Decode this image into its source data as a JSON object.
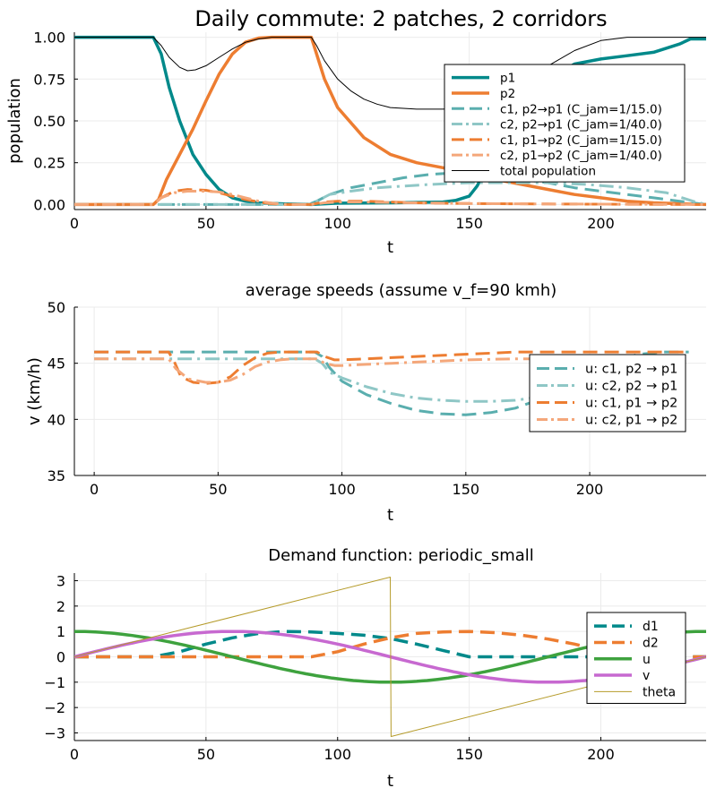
{
  "chart_data": [
    {
      "type": "line",
      "title": "Daily commute: 2 patches, 2 corridors",
      "xlabel": "t",
      "ylabel": "population",
      "xlim": [
        0,
        240
      ],
      "ylim": [
        -0.03,
        1.03
      ],
      "xticks": [
        0,
        50,
        100,
        150,
        200
      ],
      "xtick_labels": [
        "0",
        "50",
        "100",
        "150",
        "200"
      ],
      "yticks": [
        0,
        0.25,
        0.5,
        0.75,
        1.0
      ],
      "ytick_labels": [
        "0.00",
        "0.25",
        "0.50",
        "0.75",
        "1.00"
      ],
      "grid": true,
      "legend_position": "top-right",
      "series": [
        {
          "name": "p1",
          "color": "#00898a",
          "style": "solid",
          "width": 3.5,
          "x": [
            0,
            30,
            33,
            36,
            40,
            45,
            50,
            55,
            60,
            65,
            70,
            80,
            90,
            100,
            120,
            140,
            145,
            150,
            153,
            156,
            160,
            170,
            180,
            190,
            200,
            210,
            220,
            230,
            234,
            240
          ],
          "y": [
            1,
            1,
            0.9,
            0.7,
            0.5,
            0.3,
            0.18,
            0.09,
            0.04,
            0.02,
            0.01,
            0.003,
            0,
            0.008,
            0.01,
            0.015,
            0.025,
            0.05,
            0.11,
            0.2,
            0.4,
            0.6,
            0.75,
            0.84,
            0.87,
            0.89,
            0.91,
            0.96,
            0.99,
            0.99
          ]
        },
        {
          "name": "p2",
          "color": "#ed7d31",
          "style": "solid",
          "width": 3.5,
          "x": [
            0,
            30,
            32,
            35,
            40,
            45,
            50,
            55,
            60,
            65,
            70,
            75,
            80,
            90,
            92,
            95,
            100,
            110,
            120,
            130,
            140,
            150,
            160,
            170,
            180,
            190,
            200,
            210,
            220,
            230,
            240
          ],
          "y": [
            0,
            0,
            0.03,
            0.15,
            0.3,
            0.45,
            0.62,
            0.78,
            0.9,
            0.97,
            0.995,
            1,
            1,
            1,
            0.9,
            0.75,
            0.58,
            0.4,
            0.3,
            0.25,
            0.22,
            0.18,
            0.15,
            0.12,
            0.09,
            0.06,
            0.04,
            0.02,
            0.01,
            0.005,
            0
          ]
        },
        {
          "name": "c1, p2→p1 (C_jam=1/15.0)",
          "color": "#5aaeae",
          "style": "dash",
          "width": 3,
          "x": [
            0,
            89,
            92,
            97,
            105,
            115,
            125,
            135,
            145,
            150,
            155,
            160,
            170,
            180,
            190,
            200,
            210,
            220,
            230,
            240
          ],
          "y": [
            0,
            0,
            0.02,
            0.06,
            0.1,
            0.13,
            0.16,
            0.18,
            0.19,
            0.19,
            0.18,
            0.17,
            0.15,
            0.13,
            0.1,
            0.08,
            0.06,
            0.04,
            0.02,
            0
          ]
        },
        {
          "name": "c2, p2→p1 (C_jam=1/40.0)",
          "color": "#8fc7c6",
          "style": "dashdot",
          "width": 3,
          "x": [
            0,
            89,
            92,
            97,
            105,
            115,
            125,
            135,
            150,
            165,
            180,
            195,
            210,
            225,
            235,
            240
          ],
          "y": [
            0,
            0,
            0.02,
            0.06,
            0.08,
            0.1,
            0.11,
            0.12,
            0.13,
            0.13,
            0.13,
            0.12,
            0.1,
            0.07,
            0.02,
            0
          ]
        },
        {
          "name": "c1, p1→p2 (C_jam=1/15.0)",
          "color": "#ed7d31",
          "style": "dash",
          "width": 3,
          "x": [
            0,
            30,
            33,
            38,
            43,
            50,
            55,
            60,
            65,
            70,
            75,
            80,
            90,
            95,
            100,
            110,
            120,
            130,
            140,
            150,
            160,
            170,
            180,
            200,
            220,
            240
          ],
          "y": [
            0,
            0,
            0.04,
            0.08,
            0.09,
            0.085,
            0.07,
            0.05,
            0.03,
            0.015,
            0.005,
            0,
            0,
            0.015,
            0.02,
            0.02,
            0.015,
            0.01,
            0.008,
            0.006,
            0.005,
            0.004,
            0.003,
            0.002,
            0.001,
            0
          ]
        },
        {
          "name": "c2, p1→p2 (C_jam=1/40.0)",
          "color": "#f4a77a",
          "style": "dashdot",
          "width": 3,
          "x": [
            0,
            30,
            33,
            38,
            43,
            50,
            55,
            60,
            65,
            70,
            75,
            80,
            90,
            95,
            100,
            110,
            120,
            130,
            140,
            150,
            160,
            170,
            180,
            200,
            220,
            240
          ],
          "y": [
            0,
            0,
            0.04,
            0.07,
            0.08,
            0.08,
            0.075,
            0.06,
            0.04,
            0.02,
            0.008,
            0,
            0,
            0.01,
            0.015,
            0.015,
            0.012,
            0.01,
            0.008,
            0.006,
            0.005,
            0.004,
            0.003,
            0.002,
            0.001,
            0
          ]
        },
        {
          "name": "total population",
          "color": "#000000",
          "style": "solid",
          "width": 1,
          "x": [
            0,
            30,
            33,
            36,
            40,
            43,
            46,
            50,
            55,
            60,
            65,
            70,
            75,
            80,
            90,
            92,
            95,
            100,
            105,
            110,
            115,
            120,
            130,
            140,
            150,
            160,
            170,
            180,
            190,
            200,
            210,
            220,
            230,
            240
          ],
          "y": [
            1,
            1,
            0.95,
            0.88,
            0.82,
            0.8,
            0.805,
            0.83,
            0.88,
            0.93,
            0.97,
            0.99,
            1,
            1,
            1,
            0.95,
            0.86,
            0.75,
            0.68,
            0.63,
            0.6,
            0.58,
            0.57,
            0.57,
            0.58,
            0.65,
            0.74,
            0.83,
            0.92,
            0.98,
            1,
            1,
            1,
            1
          ]
        }
      ]
    },
    {
      "type": "line",
      "title": "average speeds (assume v_f=90 kmh)",
      "xlabel": "t",
      "ylabel": "v (km/h)",
      "xlim": [
        -8,
        247
      ],
      "ylim": [
        35,
        50
      ],
      "xticks": [
        0,
        50,
        100,
        150,
        200
      ],
      "xtick_labels": [
        "0",
        "50",
        "100",
        "150",
        "200"
      ],
      "yticks": [
        35,
        40,
        45,
        50
      ],
      "ytick_labels": [
        "35",
        "40",
        "45",
        "50"
      ],
      "grid": true,
      "legend_position": "right",
      "series": [
        {
          "name": "u: c1, p2 → p1",
          "color": "#5aaeae",
          "style": "dash",
          "width": 3,
          "x": [
            0,
            89,
            92,
            95,
            100,
            110,
            120,
            130,
            140,
            150,
            160,
            170,
            180,
            190,
            200,
            210,
            220,
            230,
            240
          ],
          "y": [
            46,
            46,
            45.6,
            44.6,
            43.4,
            42.2,
            41.4,
            40.8,
            40.5,
            40.4,
            40.6,
            41,
            41.8,
            43,
            44.4,
            45.3,
            45.8,
            46,
            46
          ]
        },
        {
          "name": "u: c2, p2 → p1",
          "color": "#8fc7c6",
          "style": "dashdot",
          "width": 3,
          "x": [
            0,
            89,
            92,
            95,
            100,
            110,
            120,
            130,
            140,
            150,
            160,
            170,
            180,
            190,
            200,
            210,
            220,
            230,
            240
          ],
          "y": [
            45.4,
            45.4,
            45,
            44.2,
            43.7,
            42.9,
            42.3,
            41.9,
            41.7,
            41.6,
            41.6,
            41.7,
            42,
            42.8,
            43.8,
            44.6,
            45,
            45.3,
            45.4
          ]
        },
        {
          "name": "u: c1, p1 → p2",
          "color": "#ed7d31",
          "style": "dash",
          "width": 3,
          "x": [
            0,
            30,
            32,
            35,
            40,
            45,
            50,
            55,
            60,
            65,
            70,
            75,
            80,
            90,
            93,
            97,
            100,
            110,
            120,
            130,
            140,
            150,
            160,
            170,
            180,
            200,
            220,
            240
          ],
          "y": [
            46,
            46,
            45.3,
            43.8,
            43.3,
            43.2,
            43.3,
            43.8,
            44.8,
            45.5,
            45.9,
            46,
            46,
            46,
            45.6,
            45.3,
            45.3,
            45.4,
            45.5,
            45.6,
            45.7,
            45.8,
            45.9,
            46,
            46,
            46,
            46,
            46
          ]
        },
        {
          "name": "u: c2, p1 → p2",
          "color": "#f4a77a",
          "style": "dashdot",
          "width": 3,
          "x": [
            0,
            30,
            33,
            38,
            45,
            50,
            55,
            60,
            65,
            70,
            75,
            80,
            90,
            93,
            97,
            100,
            110,
            120,
            130,
            140,
            150,
            160,
            170,
            180,
            200,
            220,
            240
          ],
          "y": [
            45.4,
            45.4,
            44.5,
            43.6,
            43.3,
            43.3,
            43.5,
            44,
            44.7,
            45.1,
            45.3,
            45.4,
            45.4,
            45,
            44.8,
            44.8,
            44.9,
            45,
            45.1,
            45.2,
            45.3,
            45.35,
            45.4,
            45.4,
            45.4,
            45.4,
            45.4
          ]
        }
      ]
    },
    {
      "type": "line",
      "title": "Demand function: periodic_small",
      "xlabel": "t",
      "ylabel": "",
      "xlim": [
        0,
        240
      ],
      "ylim": [
        -3.3,
        3.3
      ],
      "xticks": [
        0,
        50,
        100,
        150,
        200
      ],
      "xtick_labels": [
        "0",
        "50",
        "100",
        "150",
        "200"
      ],
      "yticks": [
        -3,
        -2,
        -1,
        0,
        1,
        2,
        3
      ],
      "ytick_labels": [
        "−3",
        "−2",
        "−1",
        "0",
        "1",
        "2",
        "3"
      ],
      "grid": true,
      "legend_position": "right",
      "series": [
        {
          "name": "d1",
          "color": "#00898a",
          "style": "dash",
          "width": 3.5,
          "x": [
            0,
            30,
            40,
            50,
            60,
            70,
            80,
            90,
            100,
            110,
            120,
            130,
            140,
            150,
            160,
            170,
            180,
            190,
            200,
            210,
            220,
            230,
            240
          ],
          "y": [
            0,
            0,
            0.2,
            0.5,
            0.75,
            0.92,
            1,
            0.98,
            0.92,
            0.85,
            0.72,
            0.5,
            0.25,
            0,
            0,
            0,
            0,
            0,
            0,
            0,
            0,
            0,
            0
          ]
        },
        {
          "name": "d2",
          "color": "#ed7d31",
          "style": "dash",
          "width": 3.5,
          "x": [
            0,
            30,
            60,
            90,
            100,
            110,
            120,
            130,
            140,
            150,
            160,
            170,
            180,
            190,
            200,
            210,
            220,
            230,
            240
          ],
          "y": [
            0,
            0,
            0,
            0,
            0.2,
            0.5,
            0.75,
            0.92,
            0.98,
            1,
            0.95,
            0.85,
            0.7,
            0.5,
            0.25,
            0,
            0,
            0,
            0
          ]
        },
        {
          "name": "u",
          "color": "#3ea23e",
          "style": "solid",
          "width": 3.5,
          "fn": "cos",
          "period": 240,
          "amp": 1
        },
        {
          "name": "v",
          "color": "#c769d0",
          "style": "solid",
          "width": 3.5,
          "fn": "sin",
          "period": 240,
          "amp": 1
        },
        {
          "name": "theta",
          "color": "#b59b2a",
          "style": "solid",
          "width": 1,
          "x": [
            0,
            120,
            120.3,
            240
          ],
          "y": [
            0,
            3.1416,
            -3.1416,
            0
          ]
        }
      ]
    }
  ]
}
